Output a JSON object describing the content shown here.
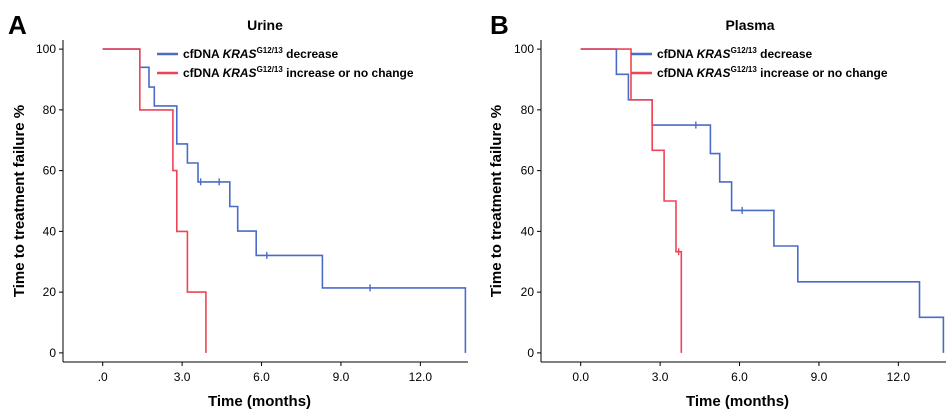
{
  "chart_data": [
    {
      "type": "line",
      "panel_label": "A",
      "title": "Urine",
      "xlabel": "Time (months)",
      "ylabel": "Time to treatment failure %",
      "xlim": [
        -1.5,
        13.8
      ],
      "ylim": [
        -3,
        103
      ],
      "x_ticks": [
        0,
        3,
        6,
        9,
        12
      ],
      "x_tick_labels": [
        ".0",
        "3.0",
        "6.0",
        "9.0",
        "12.0"
      ],
      "y_ticks": [
        0,
        20,
        40,
        60,
        80,
        100
      ],
      "y_tick_labels": [
        "0",
        "20",
        "40",
        "60",
        "80",
        "100"
      ],
      "legend_position": "top-right",
      "series": [
        {
          "name_prefix": "cfDNA ",
          "name_gene": "KRAS",
          "name_sup": "G12/13",
          "name_suffix": " decrease",
          "color": "#4a6bc8",
          "steps": [
            [
              0,
              100
            ],
            [
              1.4,
              100
            ],
            [
              1.4,
              94
            ],
            [
              1.75,
              94
            ],
            [
              1.75,
              87.5
            ],
            [
              1.95,
              87.5
            ],
            [
              1.95,
              81.3
            ],
            [
              2.8,
              81.3
            ],
            [
              2.8,
              68.8
            ],
            [
              3.2,
              68.8
            ],
            [
              3.2,
              62.5
            ],
            [
              3.6,
              62.5
            ],
            [
              3.6,
              56.3
            ],
            [
              4.8,
              56.3
            ],
            [
              4.8,
              48.2
            ],
            [
              5.1,
              48.2
            ],
            [
              5.1,
              40.1
            ],
            [
              5.8,
              40.1
            ],
            [
              5.8,
              32.1
            ],
            [
              8.3,
              32.1
            ],
            [
              8.3,
              21.4
            ],
            [
              13.7,
              21.4
            ],
            [
              13.7,
              0
            ]
          ],
          "censored": [
            [
              3.7,
              56.3
            ],
            [
              4.4,
              56.3
            ],
            [
              6.2,
              32.1
            ],
            [
              10.1,
              21.4
            ]
          ]
        },
        {
          "name_prefix": "cfDNA ",
          "name_gene": "KRAS",
          "name_sup": "G12/13",
          "name_suffix": " increase or no change",
          "color": "#ee4455",
          "steps": [
            [
              0,
              100
            ],
            [
              1.4,
              100
            ],
            [
              1.4,
              80
            ],
            [
              2.65,
              80
            ],
            [
              2.65,
              60
            ],
            [
              2.8,
              60
            ],
            [
              2.8,
              40
            ],
            [
              3.2,
              40
            ],
            [
              3.2,
              20
            ],
            [
              3.9,
              20
            ],
            [
              3.9,
              0
            ]
          ],
          "censored": []
        }
      ]
    },
    {
      "type": "line",
      "panel_label": "B",
      "title": "Plasma",
      "xlabel": "Time (months)",
      "ylabel": "Time to treatment failure %",
      "xlim": [
        -1.5,
        13.8
      ],
      "ylim": [
        -3,
        103
      ],
      "x_ticks": [
        0,
        3,
        6,
        9,
        12
      ],
      "x_tick_labels": [
        "0.0",
        "3.0",
        "6.0",
        "9.0",
        "12.0"
      ],
      "y_ticks": [
        0,
        20,
        40,
        60,
        80,
        100
      ],
      "y_tick_labels": [
        "0",
        "20",
        "40",
        "60",
        "80",
        "100"
      ],
      "legend_position": "top-right",
      "series": [
        {
          "name_prefix": "cfDNA ",
          "name_gene": "KRAS",
          "name_sup": "G12/13",
          "name_suffix": " decrease",
          "color": "#4a6bc8",
          "steps": [
            [
              0,
              100
            ],
            [
              1.35,
              100
            ],
            [
              1.35,
              91.7
            ],
            [
              1.8,
              91.7
            ],
            [
              1.8,
              83.3
            ],
            [
              2.7,
              83.3
            ],
            [
              2.7,
              75
            ],
            [
              4.9,
              75
            ],
            [
              4.9,
              65.6
            ],
            [
              5.25,
              65.6
            ],
            [
              5.25,
              56.3
            ],
            [
              5.7,
              56.3
            ],
            [
              5.7,
              46.9
            ],
            [
              7.3,
              46.9
            ],
            [
              7.3,
              35.2
            ],
            [
              8.2,
              35.2
            ],
            [
              8.2,
              23.4
            ],
            [
              12.8,
              23.4
            ],
            [
              12.8,
              11.7
            ],
            [
              13.7,
              11.7
            ],
            [
              13.7,
              0
            ]
          ],
          "censored": [
            [
              4.35,
              75
            ],
            [
              6.1,
              46.9
            ]
          ]
        },
        {
          "name_prefix": "cfDNA ",
          "name_gene": "KRAS",
          "name_sup": "G12/13",
          "name_suffix": " increase or no change",
          "color": "#ee4455",
          "steps": [
            [
              0,
              100
            ],
            [
              1.9,
              100
            ],
            [
              1.9,
              83.3
            ],
            [
              2.7,
              83.3
            ],
            [
              2.7,
              66.7
            ],
            [
              3.15,
              66.7
            ],
            [
              3.15,
              50
            ],
            [
              3.6,
              50
            ],
            [
              3.6,
              33.3
            ],
            [
              3.8,
              33.3
            ],
            [
              3.8,
              0
            ]
          ],
          "censored": [
            [
              3.7,
              33.3
            ]
          ]
        }
      ]
    }
  ]
}
